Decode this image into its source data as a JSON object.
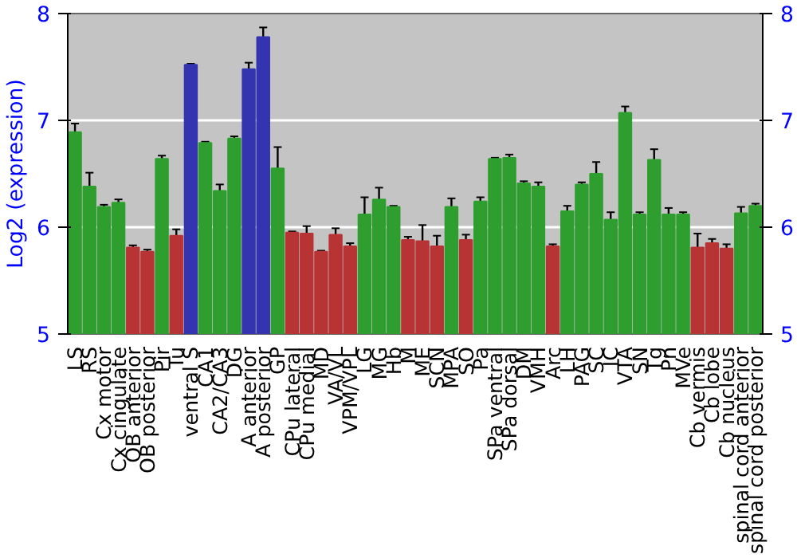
{
  "chart_data": {
    "type": "bar",
    "ylabel": "Log2 (expression)",
    "categories": [
      "LS",
      "RS",
      "Cx motor",
      "Cx cingulate",
      "OB anterior",
      "OB posterior",
      "Pir",
      "Tu",
      "ventral S",
      "CA1",
      "CA2/CA3",
      "DG",
      "A anterior",
      "A posterior",
      "GP",
      "CPu lateral",
      "CPu medial",
      "MD",
      "VA/VL",
      "VPM/VPL",
      "LG",
      "MG",
      "Hb",
      "M",
      "ME",
      "SCN",
      "MPA",
      "SO",
      "Pa",
      "SPa ventral",
      "SPa dorsal",
      "DM",
      "VMH",
      "Arc",
      "LH",
      "PAG",
      "SC",
      "IC",
      "VTA",
      "SN",
      "Tg",
      "Pn",
      "MVe",
      "Cb vermis",
      "Cb lobe",
      "Cb nucleus",
      "spinal cord anterior",
      "spinal cord posterior"
    ],
    "values": [
      6.89,
      6.38,
      6.19,
      6.23,
      5.81,
      5.77,
      6.64,
      5.92,
      7.52,
      6.79,
      6.34,
      6.83,
      7.48,
      7.78,
      6.55,
      5.95,
      5.94,
      5.77,
      5.93,
      5.82,
      6.12,
      6.26,
      6.19,
      5.88,
      5.87,
      5.82,
      6.19,
      5.88,
      6.24,
      6.64,
      6.65,
      6.41,
      6.38,
      5.82,
      6.15,
      6.4,
      6.5,
      6.07,
      7.07,
      6.12,
      6.63,
      6.12,
      6.12,
      5.81,
      5.85,
      5.8,
      6.13,
      6.2
    ],
    "errors": [
      0.08,
      0.13,
      0.02,
      0.03,
      0.02,
      0.02,
      0.03,
      0.06,
      0.01,
      0.01,
      0.06,
      0.02,
      0.06,
      0.09,
      0.2,
      0.01,
      0.07,
      0.01,
      0.06,
      0.03,
      0.16,
      0.11,
      0.01,
      0.03,
      0.15,
      0.1,
      0.08,
      0.05,
      0.04,
      0.01,
      0.03,
      0.02,
      0.04,
      0.02,
      0.05,
      0.02,
      0.11,
      0.07,
      0.06,
      0.02,
      0.1,
      0.06,
      0.02,
      0.13,
      0.04,
      0.04,
      0.06,
      0.02
    ],
    "colors": [
      "#2e9e2e",
      "#2e9e2e",
      "#2e9e2e",
      "#2e9e2e",
      "#b83434",
      "#b83434",
      "#2e9e2e",
      "#b83434",
      "#3434b0",
      "#2e9e2e",
      "#2e9e2e",
      "#2e9e2e",
      "#3434b0",
      "#3434b0",
      "#2e9e2e",
      "#b83434",
      "#b83434",
      "#b83434",
      "#b83434",
      "#b83434",
      "#2e9e2e",
      "#2e9e2e",
      "#2e9e2e",
      "#b83434",
      "#b83434",
      "#b83434",
      "#2e9e2e",
      "#b83434",
      "#2e9e2e",
      "#2e9e2e",
      "#2e9e2e",
      "#2e9e2e",
      "#2e9e2e",
      "#b83434",
      "#2e9e2e",
      "#2e9e2e",
      "#2e9e2e",
      "#2e9e2e",
      "#2e9e2e",
      "#2e9e2e",
      "#2e9e2e",
      "#2e9e2e",
      "#2e9e2e",
      "#b83434",
      "#b83434",
      "#b83434",
      "#2e9e2e",
      "#2e9e2e"
    ],
    "ylim": [
      5,
      8
    ],
    "yticks": [
      5,
      6,
      7,
      8
    ],
    "y2lim": [
      5,
      8
    ],
    "y2ticks": [
      5,
      6,
      7,
      8
    ],
    "grid": "y"
  }
}
